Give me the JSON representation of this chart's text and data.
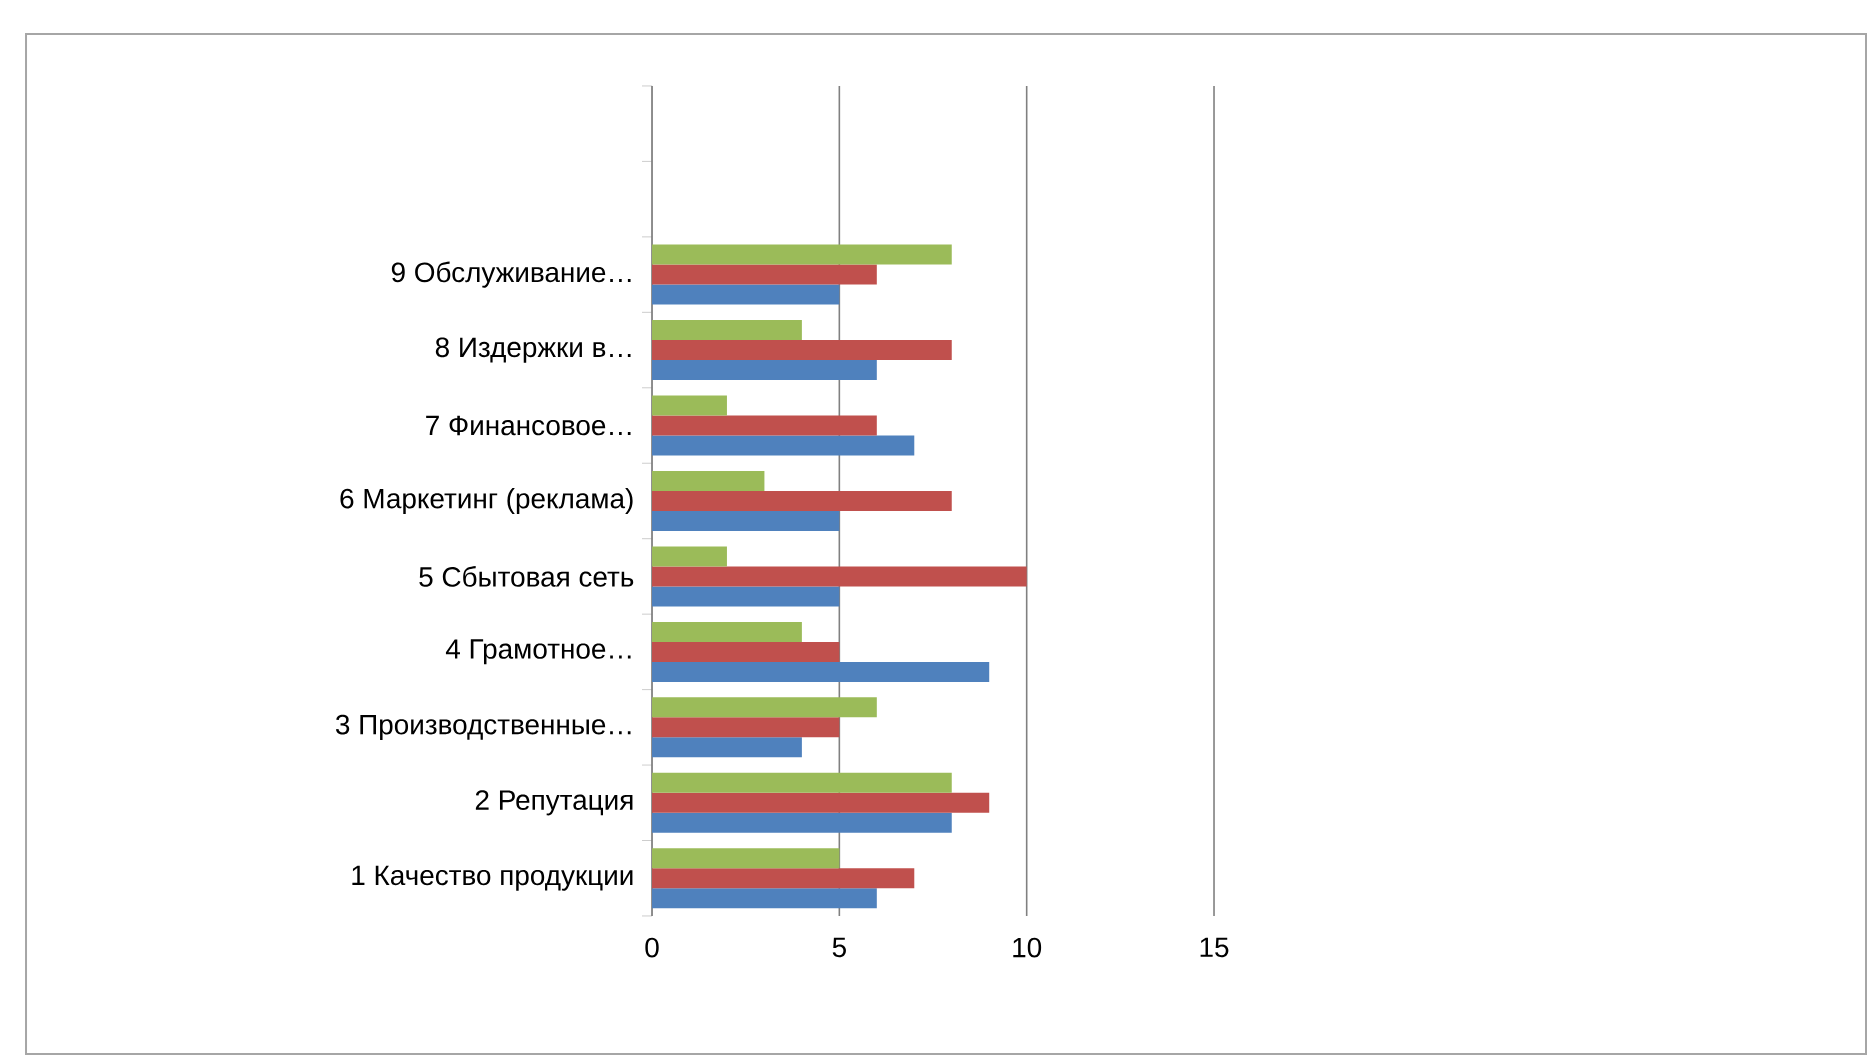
{
  "chart_data": {
    "type": "bar",
    "orientation": "horizontal",
    "categories": [
      null,
      null,
      "9 Обслуживание…",
      "8 Издержки в…",
      "7 Финансовое…",
      "6 Маркетинг (реклама)",
      "5 Сбытовая сеть",
      "4 Грамотное…",
      "3 Производственные…",
      "2 Репутация",
      "1 Качество продукции"
    ],
    "series": [
      {
        "color": "#4f81bd",
        "values": [
          null,
          null,
          5,
          6,
          7,
          5,
          5,
          9,
          4,
          8,
          6
        ]
      },
      {
        "color": "#c0504d",
        "values": [
          null,
          null,
          6,
          8,
          6,
          8,
          10,
          5,
          5,
          9,
          7
        ]
      },
      {
        "color": "#9bbb59",
        "values": [
          null,
          null,
          8,
          4,
          2,
          3,
          2,
          4,
          6,
          8,
          5
        ]
      }
    ],
    "xlim": [
      0,
      15
    ],
    "xticks": [
      0,
      5,
      10,
      15
    ],
    "grid": "x"
  }
}
